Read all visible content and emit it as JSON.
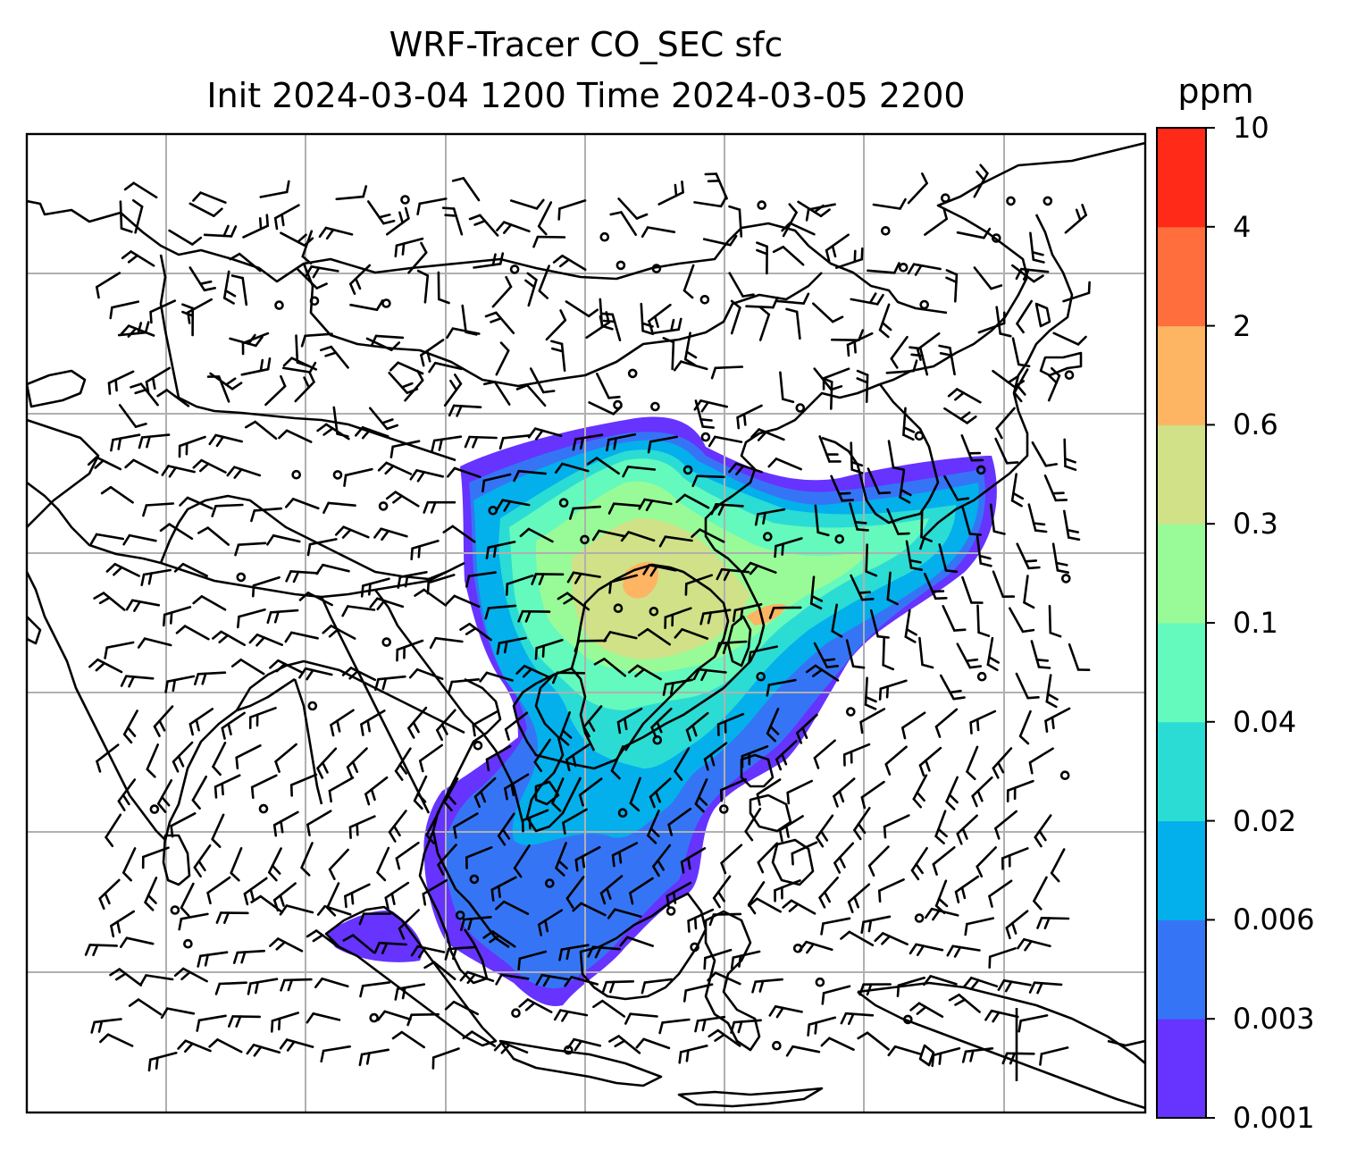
{
  "title": {
    "line1": "WRF-Tracer CO_SEC sfc",
    "line2": "Init 2024-03-04 1200 Time 2024-03-05 2200"
  },
  "colorbar": {
    "unit": "ppm",
    "ticks": [
      "0.001",
      "0.003",
      "0.006",
      "0.02",
      "0.04",
      "0.1",
      "0.3",
      "0.6",
      "2",
      "4",
      "10"
    ],
    "colors": [
      "#6633ff",
      "#3575f5",
      "#03b0ec",
      "#2bdcd4",
      "#64f9bd",
      "#98fb98",
      "#d0e187",
      "#fdb463",
      "#ff6e3c",
      "#ff2a17"
    ]
  },
  "map": {
    "background": "#ffffff",
    "coastline_color": "#000000",
    "gridline_color": "#b0b0b0",
    "layers": [
      "coastlines",
      "country-borders",
      "CO_SEC filled contours",
      "wind barbs",
      "lat-lon gridlines"
    ]
  }
}
